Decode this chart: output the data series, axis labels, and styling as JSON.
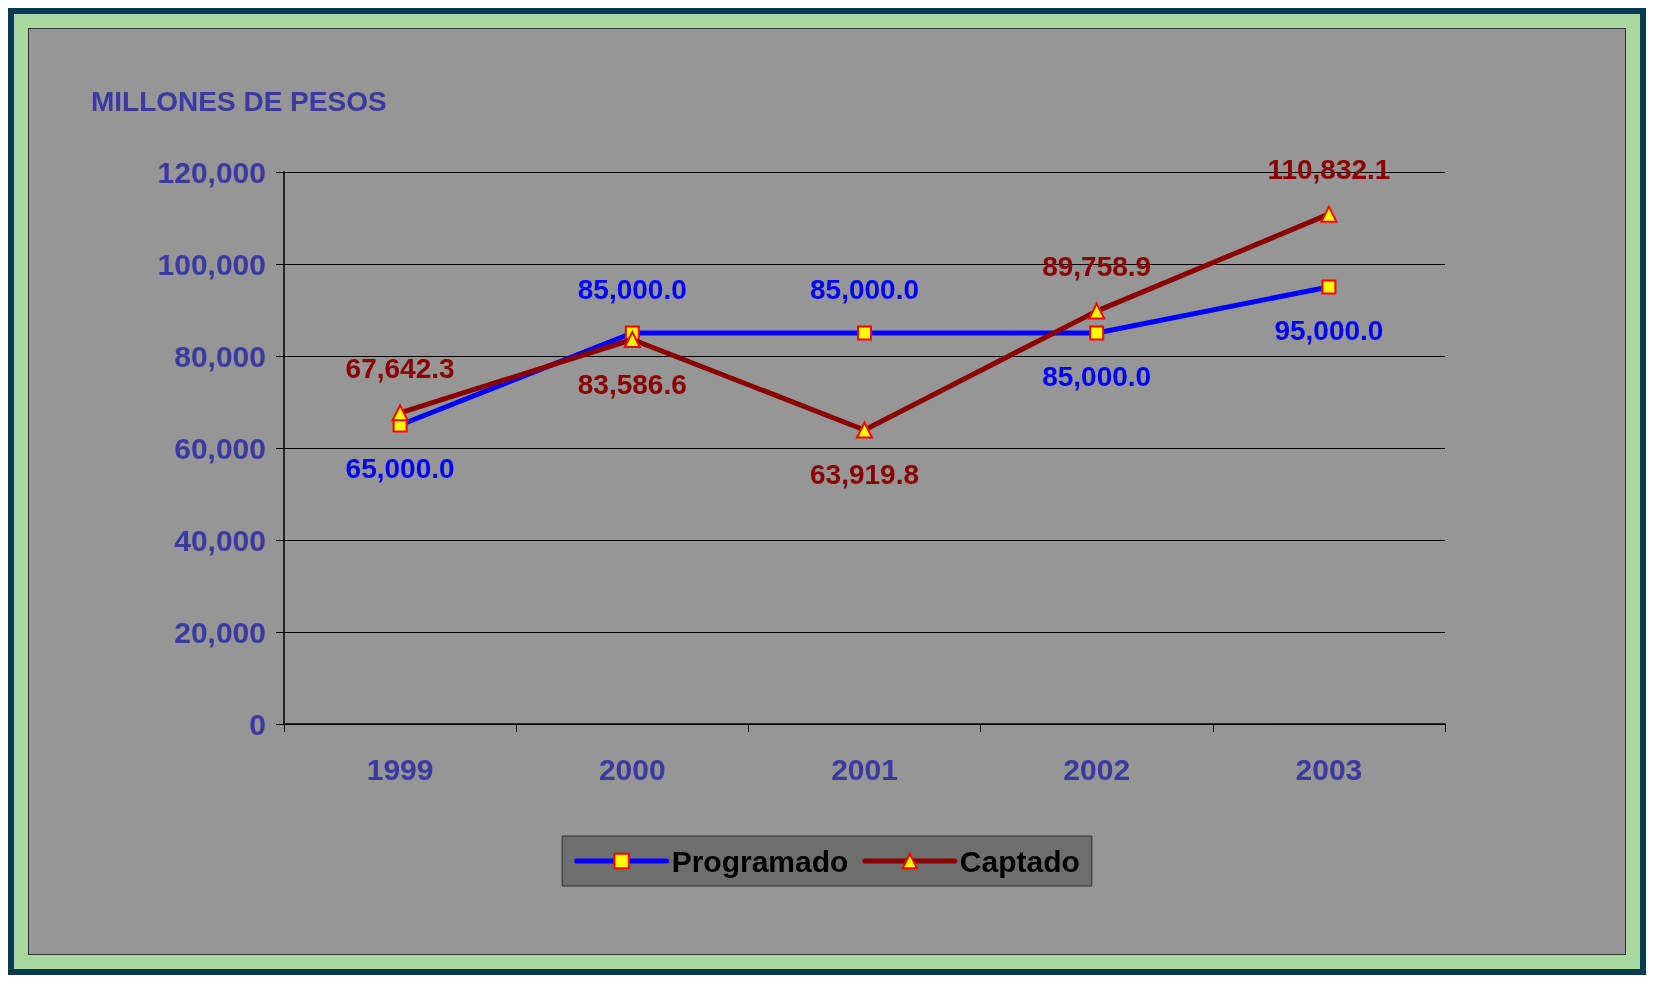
{
  "chart_data": {
    "type": "line",
    "ylabel": "MILLONES DE PESOS",
    "categories": [
      "1999",
      "2000",
      "2001",
      "2002",
      "2003"
    ],
    "series": [
      {
        "name": "Programado",
        "color": "#0000ff",
        "marker": "square",
        "values": [
          65000,
          85000,
          85000,
          85000,
          95000
        ],
        "value_labels": [
          "65,000.0",
          "85,000.0",
          "85,000.0",
          "85,000.0",
          "95,000.0"
        ]
      },
      {
        "name": "Captado",
        "color": "#8b0000",
        "marker": "triangle",
        "values": [
          67642.3,
          83586.6,
          63919.8,
          89758.9,
          110832.1
        ],
        "value_labels": [
          "67,642.3",
          "83,586.6",
          "63,919.8",
          "89,758.9",
          "110,832.1"
        ]
      }
    ],
    "ylim": [
      0,
      120000
    ],
    "yticks": [
      {
        "value": 0,
        "label": "0"
      },
      {
        "value": 20000,
        "label": "20,000"
      },
      {
        "value": 40000,
        "label": "40,000"
      },
      {
        "value": 60000,
        "label": "60,000"
      },
      {
        "value": 80000,
        "label": "80,000"
      },
      {
        "value": 100000,
        "label": "100,000"
      },
      {
        "value": 120000,
        "label": "120,000"
      }
    ],
    "grid": "y",
    "legend": "bottom",
    "line_style": "solid"
  }
}
